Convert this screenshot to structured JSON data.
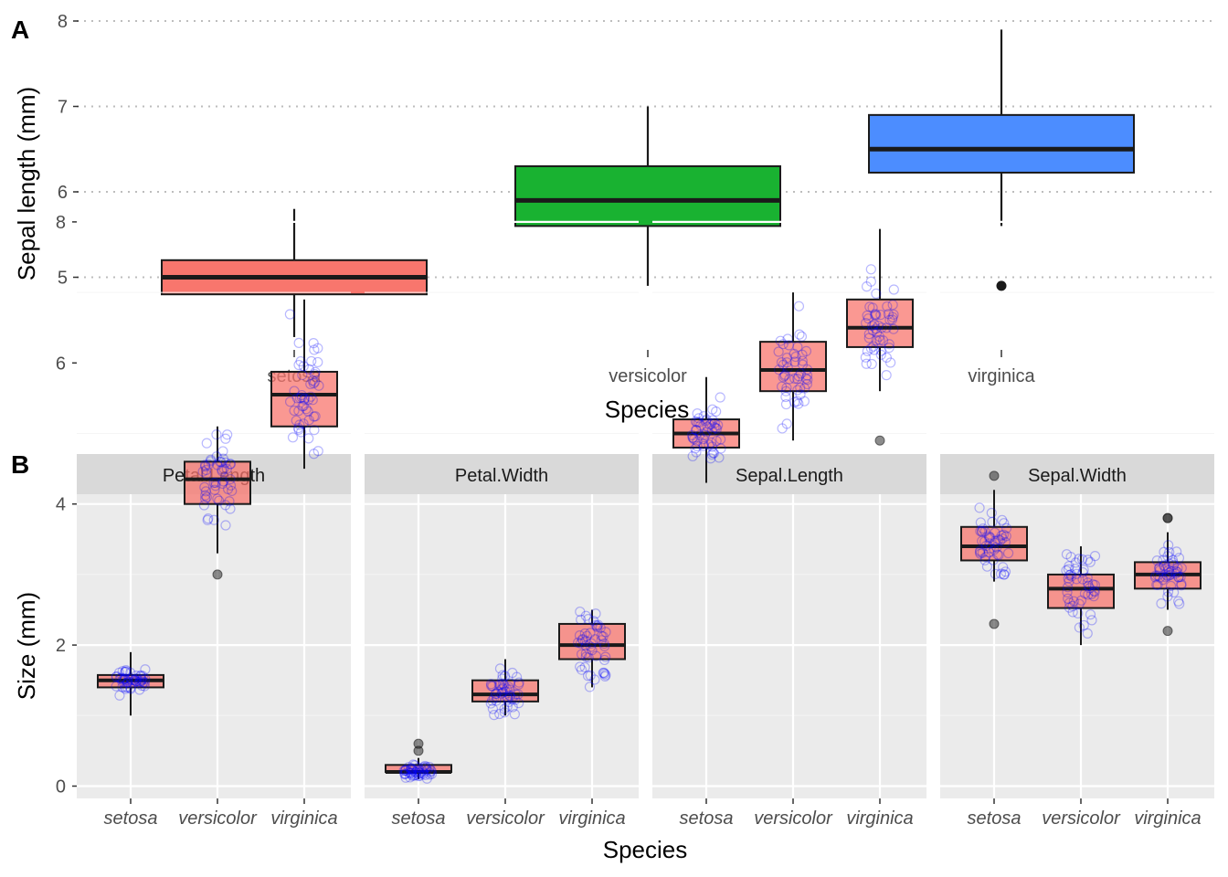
{
  "chart_data": [
    {
      "type": "box",
      "panel_tag": "A",
      "title": "",
      "xlabel": "Species",
      "ylabel": "Sepal length (mm)",
      "categories": [
        "setosa",
        "versicolor",
        "virginica"
      ],
      "fill_colors": [
        "#F8766D",
        "#19B231",
        "#4C8DFF"
      ],
      "ylim": [
        4.3,
        7.9
      ],
      "yticks": [
        "5",
        "6",
        "7",
        "8"
      ],
      "grid": "horizontal dotted",
      "boxes": [
        {
          "category": "setosa",
          "lower_whisker": 4.3,
          "q1": 4.8,
          "median": 5.0,
          "q3": 5.2,
          "upper_whisker": 5.8,
          "outliers": []
        },
        {
          "category": "versicolor",
          "lower_whisker": 4.9,
          "q1": 5.6,
          "median": 5.9,
          "q3": 6.3,
          "upper_whisker": 7.0,
          "outliers": []
        },
        {
          "category": "virginica",
          "lower_whisker": 5.6,
          "q1": 6.225,
          "median": 6.5,
          "q3": 6.9,
          "upper_whisker": 7.9,
          "outliers": [
            4.9
          ]
        }
      ]
    },
    {
      "type": "box",
      "panel_tag": "B",
      "xlabel": "Species",
      "ylabel": "Size (mm)",
      "categories": [
        "setosa",
        "versicolor",
        "virginica"
      ],
      "ylim": [
        -0.4,
        8.2
      ],
      "yticks": [
        "0",
        "2",
        "4",
        "6",
        "8"
      ],
      "box_fill": "#F8766D",
      "jitter_color": "#0000FF",
      "facets": [
        {
          "label": "Petal.Length",
          "boxes": [
            {
              "category": "setosa",
              "lower_whisker": 1.0,
              "q1": 1.4,
              "median": 1.5,
              "q3": 1.575,
              "upper_whisker": 1.9,
              "outliers": []
            },
            {
              "category": "versicolor",
              "lower_whisker": 3.3,
              "q1": 4.0,
              "median": 4.35,
              "q3": 4.6,
              "upper_whisker": 5.1,
              "outliers": [
                3.0
              ]
            },
            {
              "category": "virginica",
              "lower_whisker": 4.5,
              "q1": 5.1,
              "median": 5.55,
              "q3": 5.875,
              "upper_whisker": 6.9,
              "outliers": []
            }
          ]
        },
        {
          "label": "Petal.Width",
          "boxes": [
            {
              "category": "setosa",
              "lower_whisker": 0.1,
              "q1": 0.2,
              "median": 0.2,
              "q3": 0.3,
              "upper_whisker": 0.4,
              "outliers": [
                0.5,
                0.6
              ]
            },
            {
              "category": "versicolor",
              "lower_whisker": 1.0,
              "q1": 1.2,
              "median": 1.3,
              "q3": 1.5,
              "upper_whisker": 1.8,
              "outliers": []
            },
            {
              "category": "virginica",
              "lower_whisker": 1.4,
              "q1": 1.8,
              "median": 2.0,
              "q3": 2.3,
              "upper_whisker": 2.5,
              "outliers": []
            }
          ]
        },
        {
          "label": "Sepal.Length",
          "boxes": [
            {
              "category": "setosa",
              "lower_whisker": 4.3,
              "q1": 4.8,
              "median": 5.0,
              "q3": 5.2,
              "upper_whisker": 5.8,
              "outliers": []
            },
            {
              "category": "versicolor",
              "lower_whisker": 4.9,
              "q1": 5.6,
              "median": 5.9,
              "q3": 6.3,
              "upper_whisker": 7.0,
              "outliers": []
            },
            {
              "category": "virginica",
              "lower_whisker": 5.6,
              "q1": 6.225,
              "median": 6.5,
              "q3": 6.9,
              "upper_whisker": 7.9,
              "outliers": [
                4.9
              ]
            }
          ]
        },
        {
          "label": "Sepal.Width",
          "boxes": [
            {
              "category": "setosa",
              "lower_whisker": 2.9,
              "q1": 3.2,
              "median": 3.4,
              "q3": 3.675,
              "upper_whisker": 4.2,
              "outliers": [
                2.3,
                4.4
              ]
            },
            {
              "category": "versicolor",
              "lower_whisker": 2.0,
              "q1": 2.525,
              "median": 2.8,
              "q3": 3.0,
              "upper_whisker": 3.4,
              "outliers": []
            },
            {
              "category": "virginica",
              "lower_whisker": 2.5,
              "q1": 2.8,
              "median": 3.0,
              "q3": 3.175,
              "upper_whisker": 3.6,
              "outliers": [
                2.2,
                3.8,
                3.8
              ]
            }
          ]
        }
      ]
    }
  ]
}
